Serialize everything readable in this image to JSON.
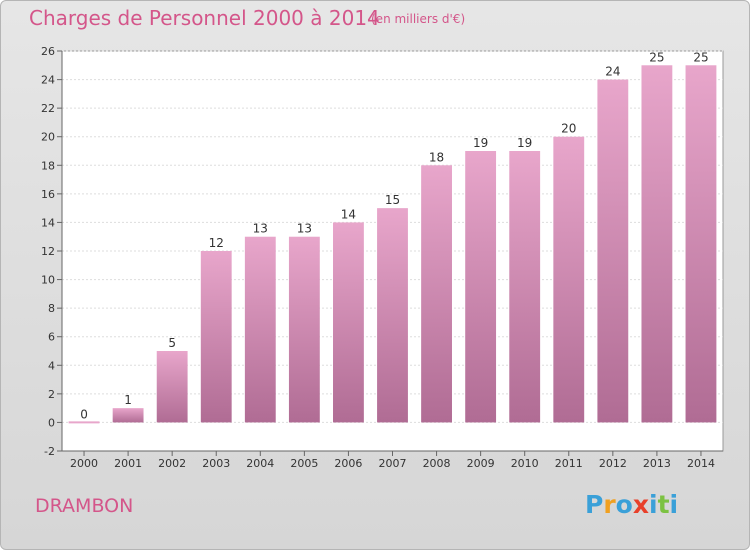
{
  "header": {
    "title": "Charges de Personnel 2000 à 2014",
    "subtitle": "(en milliers d'€)"
  },
  "footer": {
    "commune": "DRAMBON",
    "logo": {
      "letters": [
        "P",
        "r",
        "o",
        "x",
        "i",
        "t",
        "i"
      ],
      "colors": [
        "#3aa0d8",
        "#f0a020",
        "#3aa0d8",
        "#e8402a",
        "#3aa0d8",
        "#7cc242",
        "#3aa0d8"
      ]
    }
  },
  "colors": {
    "title": "#d4568a",
    "bar_top": "#e8a6cb",
    "bar_bottom": "#b06c94",
    "plot_background": "#ffffff",
    "grid": "#dddddd"
  },
  "chart_data": {
    "type": "bar",
    "categories": [
      "2000",
      "2001",
      "2002",
      "2003",
      "2004",
      "2005",
      "2006",
      "2007",
      "2008",
      "2009",
      "2010",
      "2011",
      "2012",
      "2013",
      "2014"
    ],
    "values": [
      0,
      1,
      5,
      12,
      13,
      13,
      14,
      15,
      18,
      19,
      19,
      20,
      24,
      25,
      25
    ],
    "title": "Charges de Personnel 2000 à 2014",
    "subtitle": "(en milliers d'€)",
    "ylim": [
      -2,
      26
    ],
    "yticks": [
      -2,
      0,
      2,
      4,
      6,
      8,
      10,
      12,
      14,
      16,
      18,
      20,
      22,
      24,
      26
    ],
    "grid": true,
    "data_labels": true
  }
}
